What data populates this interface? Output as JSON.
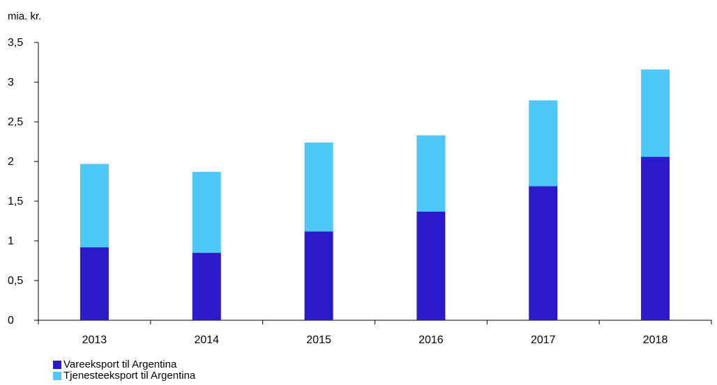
{
  "chart_data": {
    "type": "bar",
    "stacked": true,
    "unit_label": "mia. kr.",
    "categories": [
      "2013",
      "2014",
      "2015",
      "2016",
      "2017",
      "2018"
    ],
    "series": [
      {
        "name": "Vareeksport til Argentina",
        "color": "#2a1acc",
        "values": [
          0.92,
          0.85,
          1.12,
          1.37,
          1.69,
          2.06
        ]
      },
      {
        "name": "Tjenesteeksport til Argentina",
        "color": "#4ec8f8",
        "values": [
          1.05,
          1.02,
          1.12,
          0.96,
          1.08,
          1.1
        ]
      }
    ],
    "ylim": [
      0,
      3.5
    ],
    "yticks": [
      "0",
      "0,5",
      "1",
      "1,5",
      "2",
      "2,5",
      "3",
      "3,5"
    ],
    "grid": false,
    "legend_position": "bottom-left"
  }
}
